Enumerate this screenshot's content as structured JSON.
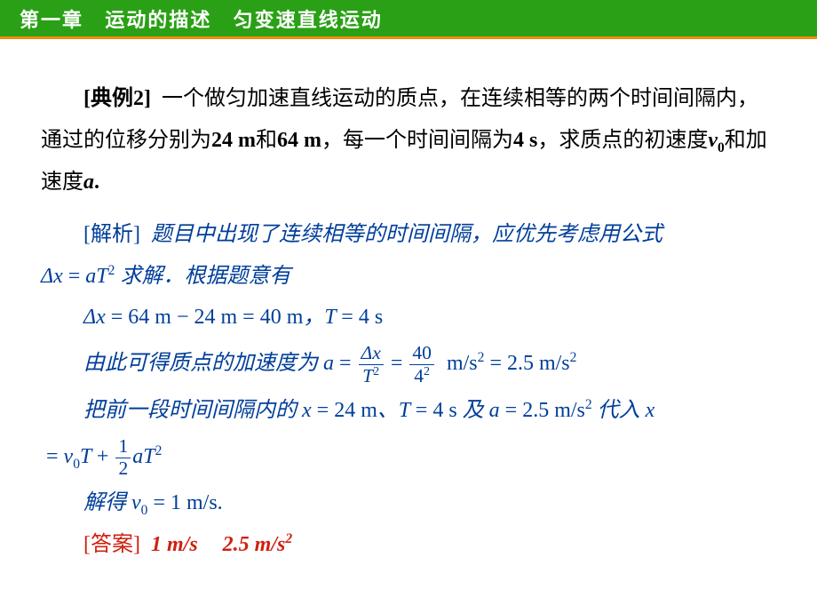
{
  "colors": {
    "header_bg": "#2aa016",
    "header_border": "#f28b0a",
    "header_text": "#ffffff",
    "body_text": "#000000",
    "analysis_text": "#003e9a",
    "answer_text": "#d02010",
    "page_bg": "#ffffff"
  },
  "typography": {
    "header_fontsize": 22,
    "body_fontsize": 24,
    "line_height": 1.95
  },
  "header": {
    "chapter": "第一章",
    "title1": "运动的描述",
    "title2": "匀变速直线运动"
  },
  "problem": {
    "label": "[典例2]",
    "text_1": "一个做匀加速直线运动的质点，在连续相等的两个时间间隔内，通过的位移分别为",
    "val_1": "24 m",
    "conj_1": "和",
    "val_2": "64 m",
    "text_2": "，每一个时间间隔为",
    "val_3": "4 s",
    "text_3": "，求质点的初速度",
    "var_v0": "v",
    "var_v0_sub": "0",
    "conj_2": "和加速度",
    "var_a": "a",
    "period": "."
  },
  "analysis": {
    "label": "[解析]",
    "line1": "题目中出现了连续相等的时间间隔，应优先考虑用公式",
    "formula1_lhs": "Δx",
    "formula1_eq": "=",
    "formula1_rhs_a": "aT",
    "formula1_rhs_exp": "2",
    "line1_tail": "求解．根据题意有",
    "line2_lhs": "Δx",
    "line2_expr": "= 64 m − 24 m = 40 m",
    "line2_sep": "，",
    "line2_T": "T",
    "line2_Tval": "= 4 s",
    "line3_pre": "由此可得质点的加速度为",
    "line3_a": "a",
    "line3_eq": "=",
    "line3_frac1_num": "Δx",
    "line3_frac1_den_base": "T",
    "line3_frac1_den_exp": "2",
    "line3_frac2_num": "40",
    "line3_frac2_den_base": "4",
    "line3_frac2_den_exp": "2",
    "line3_unit": "m/s",
    "line3_unit_exp": "2",
    "line3_val": "= 2.5 m/s",
    "line4_pre": "把前一段时间间隔内的",
    "line4_x": "x",
    "line4_xval": "= 24  m",
    "line4_sep1": "、",
    "line4_T": "T",
    "line4_Tval": "= 4  s",
    "line4_sep2": "及",
    "line4_a": "a",
    "line4_aval": "= 2.5  m/s",
    "line4_a_exp": "2",
    "line4_tail": "代入",
    "line4_x2": "x",
    "line5_eq1": "=",
    "line5_v": "v",
    "line5_v_sub": "0",
    "line5_T": "T",
    "line5_plus": "+",
    "line5_half_num": "1",
    "line5_half_den": "2",
    "line5_aT": "aT",
    "line5_exp": "2",
    "line6_pre": "解得",
    "line6_v": "v",
    "line6_v_sub": "0",
    "line6_val": "= 1 m/s."
  },
  "answer": {
    "label": "[答案]",
    "val1": "1 m/s",
    "val2_num": "2.5 m/s",
    "val2_exp": "2"
  }
}
